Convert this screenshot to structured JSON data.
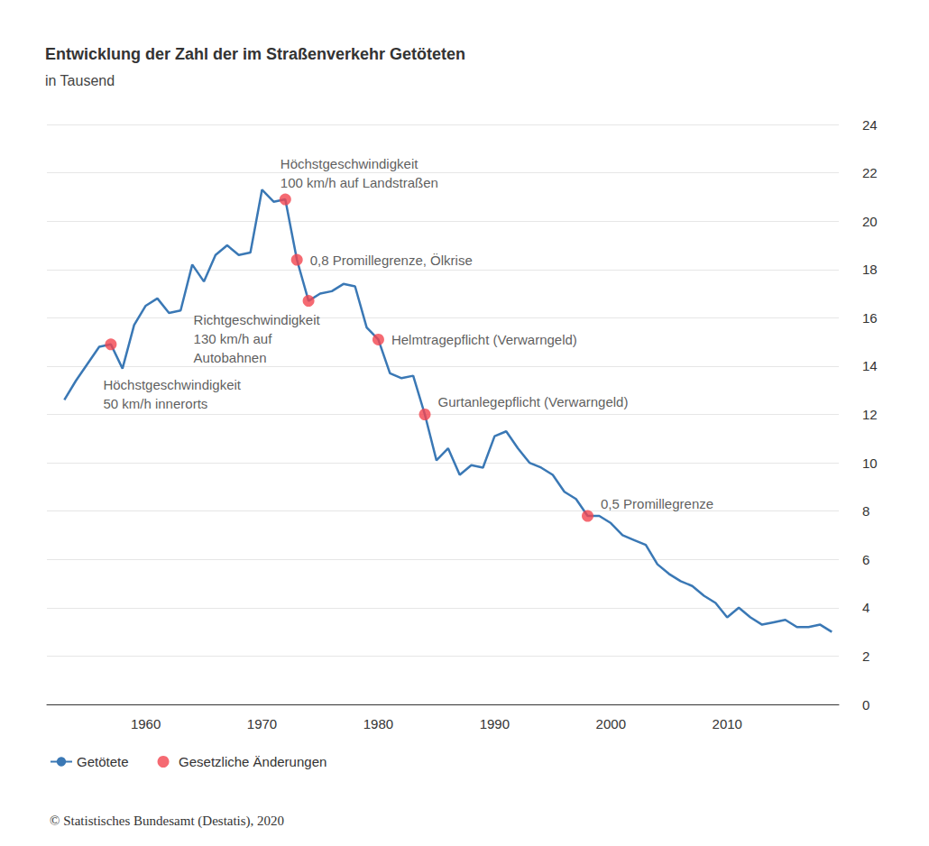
{
  "chart_data": {
    "type": "line",
    "title": "Entwicklung der Zahl der im Straßenverkehr Getöteten",
    "subtitle": "in Tausend",
    "source": "© Statistisches Bundesamt (Destatis), 2020",
    "x": [
      1953,
      1954,
      1955,
      1956,
      1957,
      1958,
      1959,
      1960,
      1961,
      1962,
      1963,
      1964,
      1965,
      1966,
      1967,
      1968,
      1969,
      1970,
      1971,
      1972,
      1973,
      1974,
      1975,
      1976,
      1977,
      1978,
      1979,
      1980,
      1981,
      1982,
      1983,
      1984,
      1985,
      1986,
      1987,
      1988,
      1989,
      1990,
      1991,
      1992,
      1993,
      1994,
      1995,
      1996,
      1997,
      1998,
      1999,
      2000,
      2001,
      2002,
      2003,
      2004,
      2005,
      2006,
      2007,
      2008,
      2009,
      2010,
      2011,
      2012,
      2013,
      2014,
      2015,
      2016,
      2017,
      2018,
      2019
    ],
    "series": [
      {
        "name": "Getötete",
        "type": "line",
        "color": "#3a78b5",
        "marker": "none",
        "line_style": "solid",
        "values": [
          12.6,
          13.4,
          14.1,
          14.8,
          14.9,
          13.9,
          15.7,
          16.5,
          16.8,
          16.2,
          16.3,
          18.2,
          17.5,
          18.6,
          19.0,
          18.6,
          18.7,
          21.3,
          20.8,
          20.9,
          18.4,
          16.7,
          17.0,
          17.1,
          17.4,
          17.3,
          15.6,
          15.1,
          13.7,
          13.5,
          13.6,
          12.0,
          10.1,
          10.6,
          9.5,
          9.9,
          9.8,
          11.1,
          11.3,
          10.6,
          10.0,
          9.8,
          9.5,
          8.8,
          8.5,
          7.8,
          7.8,
          7.5,
          7.0,
          6.8,
          6.6,
          5.8,
          5.4,
          5.1,
          4.9,
          4.5,
          4.2,
          3.6,
          4.0,
          3.6,
          3.3,
          3.4,
          3.5,
          3.2,
          3.2,
          3.3,
          3.0
        ]
      },
      {
        "name": "Gesetzliche Änderungen",
        "type": "scatter",
        "color": "#f2454f",
        "marker": "circle",
        "x": [
          1957,
          1972,
          1973,
          1974,
          1980,
          1984,
          1998
        ],
        "values": [
          14.9,
          20.9,
          18.4,
          16.7,
          15.1,
          12.0,
          7.8
        ],
        "annotations": [
          "Höchstgeschwindigkeit\n50 km/h innerorts",
          "Höchstgeschwindigkeit\n100 km/h auf Landstraßen",
          "0,8 Promillegrenze, Ölkrise",
          "Richtgeschwindigkeit\n130 km/h auf\nAutobahnen",
          "Helmtragepflicht (Verwarngeld)",
          "Gurtanlegepflicht (Verwarngeld)",
          "0,5 Promillegrenze"
        ]
      }
    ],
    "xlim": [
      1951.5,
      2019.6
    ],
    "xticks": [
      1960,
      1970,
      1980,
      1990,
      2000,
      2010
    ],
    "ylim": [
      0,
      24
    ],
    "yticks": [
      0,
      2,
      4,
      6,
      8,
      10,
      12,
      14,
      16,
      18,
      20,
      22,
      24
    ],
    "grid": true,
    "legend": "bottom left"
  }
}
